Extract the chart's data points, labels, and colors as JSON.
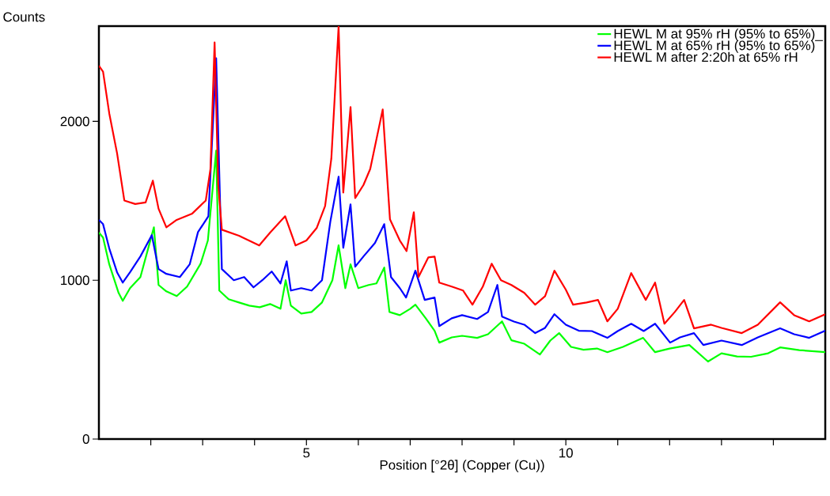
{
  "chart_data": {
    "type": "line",
    "xlabel": "Position [°2θ] (Copper (Cu))",
    "ylabel": "Counts",
    "xlim": [
      1,
      15
    ],
    "ylim": [
      0,
      2600
    ],
    "xticks": [
      {
        "value": 2,
        "label": null
      },
      {
        "value": 3,
        "label": null
      },
      {
        "value": 4,
        "label": null
      },
      5,
      {
        "value": 6,
        "label": null
      },
      {
        "value": 7,
        "label": null
      },
      {
        "value": 8,
        "label": null
      },
      {
        "value": 9,
        "label": null
      },
      10,
      {
        "value": 11,
        "label": null
      },
      {
        "value": 12,
        "label": null
      },
      {
        "value": 13,
        "label": null
      },
      {
        "value": 14,
        "label": null
      }
    ],
    "yticks": [
      0,
      1000,
      2000
    ],
    "grid": false,
    "legend": "top right",
    "line_style": "solid",
    "series": [
      {
        "name": "HEWL M at 95% rH (95% to 65%)_",
        "color": "#00ff00",
        "x": [
          1.0,
          1.08,
          1.2,
          1.38,
          1.46,
          1.6,
          1.8,
          2.06,
          2.15,
          2.3,
          2.5,
          2.7,
          2.96,
          3.1,
          3.26,
          3.32,
          3.5,
          3.7,
          3.9,
          4.1,
          4.3,
          4.5,
          4.6,
          4.7,
          4.9,
          5.1,
          5.3,
          5.5,
          5.62,
          5.75,
          5.85,
          6.0,
          6.2,
          6.35,
          6.5,
          6.6,
          6.8,
          7.0,
          7.1,
          7.3,
          7.47,
          7.56,
          7.8,
          8.0,
          8.29,
          8.5,
          8.77,
          8.95,
          9.2,
          9.5,
          9.7,
          9.87,
          10.1,
          10.34,
          10.6,
          10.8,
          11.1,
          11.49,
          11.72,
          12.0,
          12.38,
          12.74,
          13.0,
          13.3,
          13.57,
          13.9,
          14.13,
          14.5,
          15.0
        ],
        "values": [
          1300,
          1269,
          1100,
          920,
          870,
          950,
          1020,
          1333,
          970,
          930,
          900,
          960,
          1104,
          1250,
          1816,
          935,
          880,
          860,
          840,
          830,
          850,
          820,
          1000,
          840,
          790,
          800,
          860,
          1000,
          1220,
          950,
          1100,
          950,
          970,
          980,
          1080,
          800,
          780,
          820,
          846,
          760,
          682,
          607,
          640,
          650,
          637,
          660,
          741,
          622,
          600,
          532,
          620,
          667,
          580,
          562,
          570,
          547,
          580,
          637,
          547,
          570,
          592,
          488,
          540,
          520,
          518,
          540,
          577,
          560,
          547
        ]
      },
      {
        "name": "HEWL M at 65% rH (95% to 65%)",
        "color": "#0000ff",
        "x": [
          1.0,
          1.08,
          1.2,
          1.35,
          1.46,
          1.6,
          1.8,
          2.02,
          2.15,
          2.3,
          2.56,
          2.75,
          2.91,
          3.11,
          3.26,
          3.37,
          3.6,
          3.8,
          3.98,
          4.15,
          4.33,
          4.5,
          4.62,
          4.7,
          4.9,
          5.1,
          5.3,
          5.46,
          5.62,
          5.71,
          5.85,
          5.94,
          6.1,
          6.32,
          6.5,
          6.63,
          6.8,
          6.92,
          7.1,
          7.28,
          7.47,
          7.56,
          7.8,
          8.0,
          8.29,
          8.5,
          8.68,
          8.77,
          9.0,
          9.2,
          9.41,
          9.6,
          9.78,
          10.0,
          10.25,
          10.5,
          10.8,
          11.0,
          11.26,
          11.5,
          11.72,
          12.01,
          12.2,
          12.47,
          12.65,
          13.0,
          13.39,
          13.7,
          14.13,
          14.4,
          14.69,
          15.0
        ],
        "values": [
          1380,
          1353,
          1200,
          1050,
          985,
          1050,
          1150,
          1284,
          1070,
          1040,
          1020,
          1100,
          1303,
          1403,
          2398,
          1070,
          1000,
          1020,
          955,
          1000,
          1055,
          980,
          1119,
          935,
          950,
          935,
          1000,
          1368,
          1652,
          1204,
          1478,
          1085,
          1150,
          1234,
          1353,
          1020,
          950,
          891,
          1060,
          876,
          891,
          711,
          760,
          780,
          756,
          800,
          970,
          771,
          740,
          720,
          667,
          700,
          786,
          720,
          682,
          680,
          637,
          680,
          726,
          680,
          726,
          607,
          640,
          667,
          592,
          620,
          592,
          640,
          697,
          660,
          637,
          682
        ]
      },
      {
        "name": "HEWL M after 2:20h at 65% rH",
        "color": "#ff0000",
        "x": [
          1.0,
          1.08,
          1.2,
          1.35,
          1.49,
          1.7,
          1.9,
          2.04,
          2.15,
          2.3,
          2.5,
          2.8,
          3.06,
          3.15,
          3.23,
          3.3,
          3.37,
          3.7,
          4.09,
          4.3,
          4.59,
          4.79,
          5.0,
          5.2,
          5.36,
          5.48,
          5.62,
          5.71,
          5.85,
          5.94,
          6.1,
          6.23,
          6.47,
          6.61,
          6.8,
          6.93,
          7.07,
          7.16,
          7.35,
          7.47,
          7.56,
          7.8,
          8.02,
          8.2,
          8.4,
          8.57,
          8.75,
          8.95,
          9.2,
          9.41,
          9.6,
          9.78,
          10.0,
          10.14,
          10.4,
          10.62,
          10.8,
          11.0,
          11.26,
          11.54,
          11.72,
          11.9,
          12.1,
          12.28,
          12.47,
          12.8,
          13.0,
          13.39,
          13.7,
          14.13,
          14.4,
          14.69,
          15.0
        ],
        "values": [
          2350,
          2313,
          2050,
          1800,
          1502,
          1480,
          1490,
          1627,
          1450,
          1333,
          1380,
          1420,
          1502,
          1700,
          2497,
          1600,
          1318,
          1280,
          1219,
          1300,
          1403,
          1219,
          1250,
          1330,
          1468,
          1766,
          2597,
          1552,
          2090,
          1517,
          1600,
          1701,
          2075,
          1383,
          1250,
          1184,
          1428,
          1020,
          1144,
          1149,
          985,
          960,
          935,
          846,
          960,
          1104,
          1000,
          970,
          920,
          846,
          900,
          1060,
          940,
          846,
          860,
          876,
          741,
          820,
          1045,
          876,
          985,
          726,
          800,
          876,
          697,
          720,
          700,
          667,
          720,
          861,
          780,
          741,
          786
        ]
      }
    ]
  }
}
